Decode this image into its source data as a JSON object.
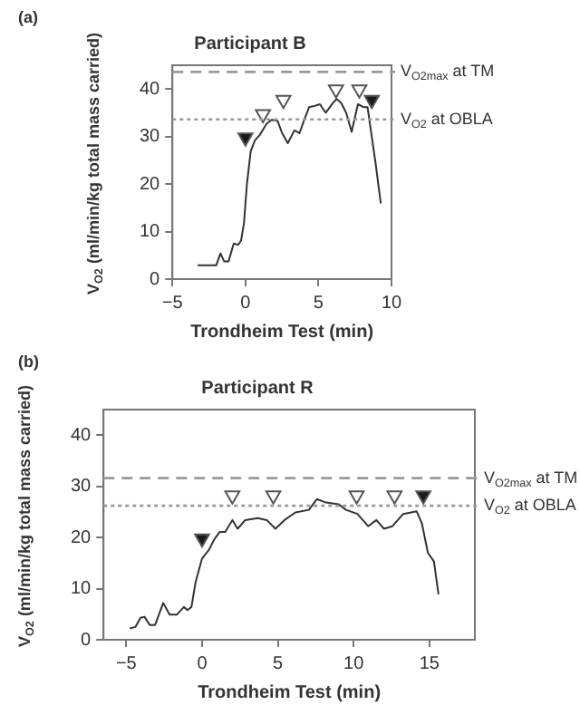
{
  "chart_data": [
    {
      "type": "line",
      "title": "Participant B",
      "xlabel": "Trondheim Test (min)",
      "ylabel": "V$_{O2}$ (ml/min/kg total mass carried)",
      "annotations": [
        "(a)"
      ],
      "xlim": [
        -5,
        10
      ],
      "xticks": [
        -5,
        0,
        5,
        10
      ],
      "ylim": [
        0,
        45
      ],
      "yticks": [
        0,
        10,
        20,
        30,
        40
      ],
      "grid": false,
      "legend": false,
      "ref_lines": [
        {
          "axis": "y",
          "value": 43.6,
          "label": "V$_{O2max}$ at TM",
          "color": "#999999",
          "line_style": "dashed"
        },
        {
          "axis": "y",
          "value": 33.6,
          "label": "V$_{O2}$ at OBLA",
          "color": "#999999",
          "line_style": "dotted"
        }
      ],
      "series": [
        {
          "type": "line",
          "color": "#333333",
          "x": [
            -3.27,
            -2.0,
            -1.71,
            -1.45,
            -1.16,
            -0.8,
            -0.5,
            -0.3,
            -0.1,
            0.1,
            0.36,
            0.65,
            1.0,
            1.45,
            1.8,
            2.2,
            2.5,
            2.9,
            3.35,
            3.7,
            4.0,
            4.36,
            4.7,
            5.1,
            5.5,
            6.0,
            6.25,
            6.55,
            6.9,
            7.27,
            7.7,
            8.07,
            8.36,
            8.55,
            8.9,
            9.27
          ],
          "values": [
            2.9,
            2.9,
            5.4,
            3.7,
            3.7,
            7.5,
            7.2,
            8.1,
            11.8,
            19.9,
            26.9,
            29.2,
            30.4,
            32.7,
            33.5,
            33.3,
            30.8,
            28.6,
            31.3,
            30.7,
            33.3,
            36.2,
            36.4,
            36.8,
            35.0,
            37.1,
            37.9,
            37.1,
            35.0,
            31.0,
            36.8,
            36.2,
            36.2,
            32.1,
            24.6,
            15.9
          ]
        },
        {
          "type": "scatter",
          "marker": "triangle",
          "color": "#1a1a1a",
          "x": [
            0,
            8.65
          ],
          "values": [
            29.8,
            37.7
          ]
        },
        {
          "type": "scatter",
          "marker": "triangle",
          "color": "#ffffff",
          "x": [
            1.2,
            2.6,
            6.2,
            7.8
          ],
          "values": [
            34.7,
            37.7,
            39.9,
            39.9
          ]
        }
      ]
    },
    {
      "type": "line",
      "title": "Participant R",
      "xlabel": "Trondheim Test (min)",
      "ylabel": "V$_{O2}$ (ml/min/kg total mass carried)",
      "annotations": [
        "(b)"
      ],
      "xlim": [
        -6.5,
        18
      ],
      "xticks": [
        -5,
        0,
        5,
        10,
        15
      ],
      "ylim": [
        0,
        45
      ],
      "yticks": [
        0,
        10,
        20,
        30,
        40
      ],
      "grid": false,
      "legend": false,
      "ref_lines": [
        {
          "axis": "y",
          "value": 31.6,
          "label": "V$_{O2max}$ at TM",
          "color": "#999999",
          "line_style": "dashed"
        },
        {
          "axis": "y",
          "value": 26.2,
          "label": "V$_{O2}$ at OBLA",
          "color": "#999999",
          "line_style": "dotted"
        }
      ],
      "series": [
        {
          "type": "line",
          "color": "#333333",
          "x": [
            -4.77,
            -4.4,
            -4.06,
            -3.8,
            -3.45,
            -3.1,
            -2.56,
            -2.14,
            -1.67,
            -1.2,
            -0.96,
            -0.7,
            -0.43,
            0,
            0.46,
            0.8,
            1.17,
            1.53,
            2.0,
            2.35,
            2.85,
            3.67,
            4.27,
            4.84,
            5.44,
            6.16,
            7.05,
            7.58,
            8.1,
            9.0,
            9.5,
            10.25,
            10.96,
            11.5,
            12.0,
            12.56,
            13.27,
            13.8,
            14.16,
            14.5,
            14.9,
            15.3,
            15.6
          ],
          "values": [
            2.2,
            2.5,
            4.3,
            4.5,
            2.9,
            2.9,
            7.2,
            4.9,
            4.9,
            6.4,
            5.8,
            6.4,
            11.2,
            15.9,
            17.6,
            19.6,
            21.1,
            21.1,
            23.4,
            21.7,
            23.4,
            23.8,
            23.4,
            21.7,
            23.4,
            24.9,
            25.4,
            27.5,
            26.9,
            26.5,
            25.4,
            24.6,
            22.2,
            23.4,
            21.7,
            22.2,
            24.6,
            24.9,
            25.1,
            22.8,
            17.0,
            15.3,
            8.9
          ]
        },
        {
          "type": "scatter",
          "marker": "triangle",
          "color": "#1a1a1a",
          "x": [
            0,
            14.6
          ],
          "values": [
            19.8,
            28.2
          ]
        },
        {
          "type": "scatter",
          "marker": "triangle",
          "color": "#ffffff",
          "x": [
            2.0,
            4.7,
            10.2,
            12.7
          ],
          "values": [
            28.2,
            28.2,
            28.2,
            28.2
          ]
        }
      ]
    }
  ]
}
